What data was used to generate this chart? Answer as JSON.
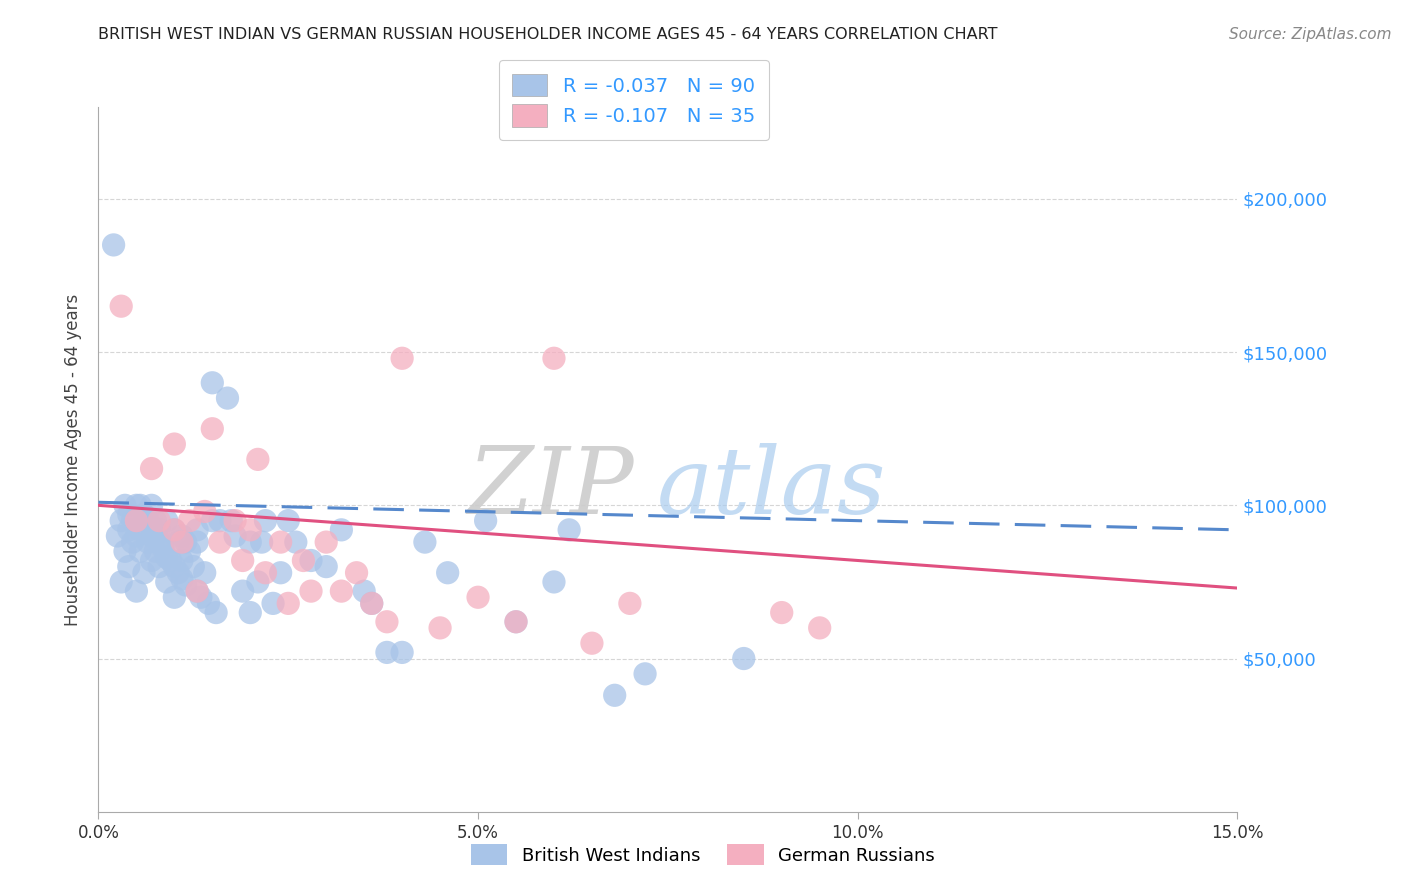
{
  "title": "BRITISH WEST INDIAN VS GERMAN RUSSIAN HOUSEHOLDER INCOME AGES 45 - 64 YEARS CORRELATION CHART",
  "source": "Source: ZipAtlas.com",
  "ylabel": "Householder Income Ages 45 - 64 years",
  "xlim": [
    0.0,
    15.0
  ],
  "ylim": [
    0,
    230000
  ],
  "yticks": [
    50000,
    100000,
    150000,
    200000
  ],
  "ytick_labels": [
    "$50,000",
    "$100,000",
    "$150,000",
    "$200,000"
  ],
  "xticks": [
    0.0,
    5.0,
    10.0,
    15.0
  ],
  "xtick_labels": [
    "0.0%",
    "5.0%",
    "10.0%",
    "15.0%"
  ],
  "watermark_zip": "ZIP",
  "watermark_atlas": "atlas",
  "legend_line1": "R = -0.037   N = 90",
  "legend_line2": "R = -0.107   N = 35",
  "blue_color": "#a8c4e8",
  "pink_color": "#f4afc0",
  "trend_blue_color": "#5588cc",
  "trend_pink_color": "#e05080",
  "background_color": "#ffffff",
  "grid_color": "#cccccc",
  "ytick_color": "#3399ff",
  "blue_scatter_x": [
    0.2,
    0.25,
    0.3,
    0.3,
    0.35,
    0.35,
    0.4,
    0.4,
    0.4,
    0.45,
    0.45,
    0.5,
    0.5,
    0.5,
    0.55,
    0.55,
    0.6,
    0.6,
    0.65,
    0.65,
    0.7,
    0.7,
    0.7,
    0.75,
    0.75,
    0.8,
    0.8,
    0.85,
    0.9,
    0.9,
    1.0,
    1.0,
    1.05,
    1.1,
    1.1,
    1.15,
    1.2,
    1.25,
    1.3,
    1.3,
    1.4,
    1.5,
    1.5,
    1.6,
    1.7,
    1.8,
    1.9,
    2.0,
    2.0,
    2.1,
    2.2,
    2.3,
    2.4,
    2.5,
    2.6,
    2.8,
    3.0,
    3.2,
    3.5,
    3.6,
    3.8,
    4.0,
    4.3,
    4.6,
    5.1,
    5.5,
    6.0,
    6.2,
    6.8,
    7.2,
    8.5,
    1.75,
    0.55,
    0.6,
    0.65,
    0.7,
    0.75,
    0.8,
    0.85,
    0.9,
    0.95,
    1.0,
    1.05,
    1.1,
    1.15,
    1.3,
    1.35,
    1.45,
    1.55,
    2.15
  ],
  "blue_scatter_y": [
    185000,
    90000,
    75000,
    95000,
    100000,
    85000,
    80000,
    92000,
    97000,
    88000,
    95000,
    72000,
    90000,
    100000,
    85000,
    92000,
    78000,
    95000,
    88000,
    95000,
    82000,
    90000,
    100000,
    85000,
    95000,
    80000,
    92000,
    87000,
    75000,
    95000,
    70000,
    92000,
    88000,
    82000,
    90000,
    88000,
    85000,
    80000,
    92000,
    88000,
    78000,
    140000,
    95000,
    95000,
    135000,
    90000,
    72000,
    88000,
    65000,
    75000,
    95000,
    68000,
    78000,
    95000,
    88000,
    82000,
    80000,
    92000,
    72000,
    68000,
    52000,
    52000,
    88000,
    78000,
    95000,
    62000,
    75000,
    92000,
    38000,
    45000,
    50000,
    95000,
    100000,
    97000,
    95000,
    93000,
    90000,
    88000,
    86000,
    83000,
    82000,
    80000,
    78000,
    76000,
    74000,
    72000,
    70000,
    68000,
    65000,
    88000
  ],
  "pink_scatter_x": [
    0.3,
    0.5,
    0.7,
    0.8,
    1.0,
    1.0,
    1.2,
    1.4,
    1.5,
    1.6,
    1.8,
    1.9,
    2.0,
    2.1,
    2.2,
    2.4,
    2.5,
    2.7,
    2.8,
    3.0,
    3.2,
    3.4,
    3.6,
    3.8,
    4.0,
    4.5,
    5.0,
    5.5,
    6.0,
    6.5,
    7.0,
    9.0,
    9.5,
    1.1,
    1.3
  ],
  "pink_scatter_y": [
    165000,
    95000,
    112000,
    95000,
    120000,
    92000,
    95000,
    98000,
    125000,
    88000,
    95000,
    82000,
    92000,
    115000,
    78000,
    88000,
    68000,
    82000,
    72000,
    88000,
    72000,
    78000,
    68000,
    62000,
    148000,
    60000,
    70000,
    62000,
    148000,
    55000,
    68000,
    65000,
    60000,
    88000,
    72000
  ]
}
